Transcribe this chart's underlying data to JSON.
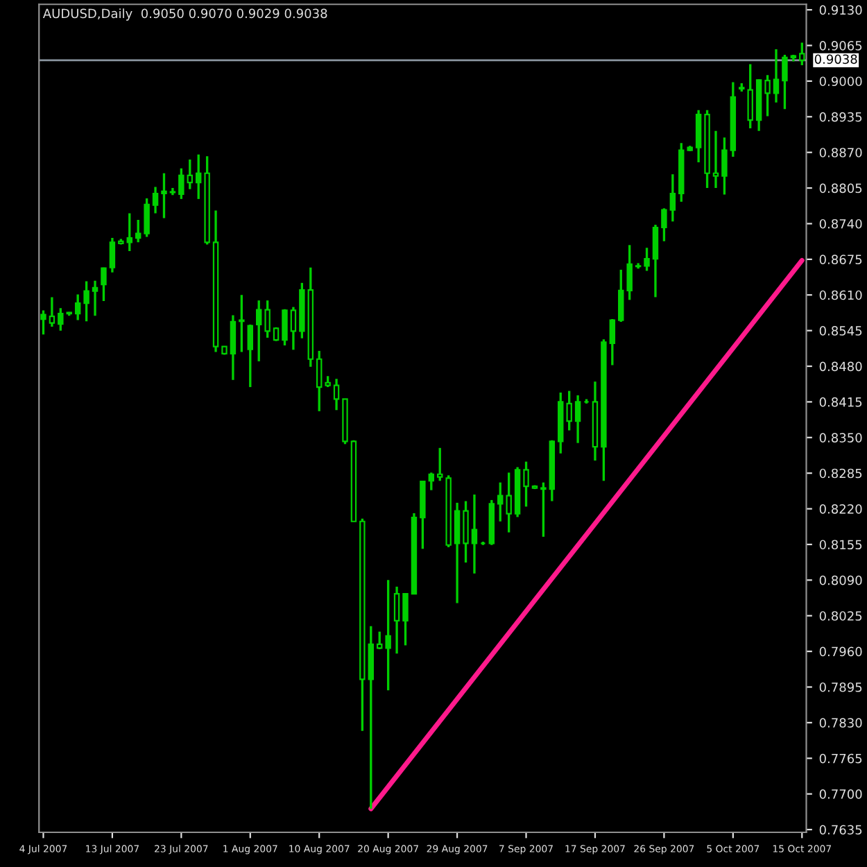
{
  "chart_data": {
    "type": "candlestick",
    "title": "AUDUSD,Daily  0.9050 0.9070 0.9029 0.9038",
    "categories": [
      "4 Jul 2007",
      null,
      null,
      null,
      null,
      null,
      null,
      null,
      "13 Jul 2007",
      null,
      null,
      null,
      null,
      null,
      null,
      null,
      "23 Jul 2007",
      null,
      null,
      null,
      null,
      null,
      null,
      null,
      "1 Aug 2007",
      null,
      null,
      null,
      null,
      null,
      null,
      null,
      "10 Aug 2007",
      null,
      null,
      null,
      null,
      null,
      null,
      null,
      "20 Aug 2007",
      null,
      null,
      null,
      null,
      null,
      null,
      null,
      "29 Aug 2007",
      null,
      null,
      null,
      null,
      null,
      null,
      null,
      "7 Sep 2007",
      null,
      null,
      null,
      null,
      null,
      null,
      null,
      "17 Sep 2007",
      null,
      null,
      null,
      null,
      null,
      null,
      null,
      "26 Sep 2007",
      null,
      null,
      null,
      null,
      null,
      null,
      null,
      "5 Oct 2007",
      null,
      null,
      null,
      null,
      null,
      null,
      null,
      "15 Oct 2007"
    ],
    "color": "#00d000",
    "ohlc": [
      [
        0.8566,
        0.8582,
        0.8538,
        0.8574
      ],
      [
        0.8571,
        0.8606,
        0.8552,
        0.8559
      ],
      [
        0.8557,
        0.8586,
        0.8545,
        0.8576
      ],
      [
        0.8578,
        0.8579,
        0.8572,
        0.8576
      ],
      [
        0.8576,
        0.8611,
        0.8564,
        0.8595
      ],
      [
        0.8595,
        0.8635,
        0.8562,
        0.8617
      ],
      [
        0.8617,
        0.8636,
        0.8572,
        0.8623
      ],
      [
        0.8629,
        0.866,
        0.8599,
        0.8659
      ],
      [
        0.866,
        0.8714,
        0.8651,
        0.8706
      ],
      [
        0.8708,
        0.8712,
        0.8702,
        0.8704
      ],
      [
        0.8706,
        0.8759,
        0.869,
        0.8714
      ],
      [
        0.8714,
        0.8747,
        0.8706,
        0.8722
      ],
      [
        0.8722,
        0.8786,
        0.8716,
        0.8775
      ],
      [
        0.8774,
        0.8807,
        0.8759,
        0.8795
      ],
      [
        0.8795,
        0.8832,
        0.875,
        0.8799
      ],
      [
        0.8797,
        0.8805,
        0.8792,
        0.8798
      ],
      [
        0.8794,
        0.8841,
        0.8785,
        0.8828
      ],
      [
        0.8828,
        0.8857,
        0.8803,
        0.8815
      ],
      [
        0.8815,
        0.8866,
        0.8785,
        0.8832
      ],
      [
        0.8832,
        0.8863,
        0.8702,
        0.8706
      ],
      [
        0.8706,
        0.8764,
        0.8506,
        0.8516
      ],
      [
        0.8516,
        0.8516,
        0.8501,
        0.8503
      ],
      [
        0.8503,
        0.8573,
        0.8455,
        0.8561
      ],
      [
        0.8562,
        0.861,
        0.8506,
        0.8564
      ],
      [
        0.8511,
        0.8556,
        0.8442,
        0.8554
      ],
      [
        0.8556,
        0.86,
        0.8489,
        0.8583
      ],
      [
        0.8583,
        0.86,
        0.8532,
        0.8544
      ],
      [
        0.8549,
        0.8551,
        0.8526,
        0.8528
      ],
      [
        0.8528,
        0.8584,
        0.8518,
        0.8582
      ],
      [
        0.8582,
        0.8588,
        0.851,
        0.8544
      ],
      [
        0.8544,
        0.8632,
        0.8531,
        0.8619
      ],
      [
        0.8619,
        0.866,
        0.8479,
        0.8493
      ],
      [
        0.8493,
        0.8508,
        0.8398,
        0.8442
      ],
      [
        0.845,
        0.8462,
        0.8442,
        0.8445
      ],
      [
        0.8445,
        0.8457,
        0.84,
        0.842
      ],
      [
        0.842,
        0.842,
        0.8338,
        0.8343
      ],
      [
        0.8343,
        0.8345,
        0.8197,
        0.8197
      ],
      [
        0.8197,
        0.8202,
        0.7815,
        0.7909
      ],
      [
        0.7909,
        0.8006,
        0.7673,
        0.7973
      ],
      [
        0.7973,
        0.7996,
        0.7964,
        0.7966
      ],
      [
        0.7966,
        0.809,
        0.7889,
        0.7988
      ],
      [
        0.8065,
        0.8078,
        0.7956,
        0.8016
      ],
      [
        0.8016,
        0.8065,
        0.7971,
        0.8065
      ],
      [
        0.8065,
        0.8212,
        0.8065,
        0.8204
      ],
      [
        0.8204,
        0.8271,
        0.8147,
        0.827
      ],
      [
        0.8271,
        0.8286,
        0.8254,
        0.8283
      ],
      [
        0.8283,
        0.8331,
        0.8271,
        0.8278
      ],
      [
        0.8276,
        0.8281,
        0.815,
        0.8154
      ],
      [
        0.8157,
        0.8231,
        0.8048,
        0.8216
      ],
      [
        0.8216,
        0.8234,
        0.8122,
        0.8157
      ],
      [
        0.8157,
        0.8246,
        0.8102,
        0.8182
      ],
      [
        0.8157,
        0.816,
        0.8154,
        0.8157
      ],
      [
        0.8157,
        0.8236,
        0.8154,
        0.8229
      ],
      [
        0.8229,
        0.8268,
        0.8197,
        0.8244
      ],
      [
        0.8244,
        0.8286,
        0.8177,
        0.8211
      ],
      [
        0.8211,
        0.8296,
        0.8205,
        0.8291
      ],
      [
        0.8291,
        0.8306,
        0.8224,
        0.8261
      ],
      [
        0.8261,
        0.8263,
        0.8256,
        0.8258
      ],
      [
        0.8258,
        0.8268,
        0.8169,
        0.8256
      ],
      [
        0.8256,
        0.8345,
        0.8234,
        0.8343
      ],
      [
        0.8343,
        0.8432,
        0.8321,
        0.8415
      ],
      [
        0.8412,
        0.8435,
        0.8363,
        0.838
      ],
      [
        0.838,
        0.8427,
        0.834,
        0.8415
      ],
      [
        0.8415,
        0.842,
        0.8412,
        0.8415
      ],
      [
        0.8415,
        0.8452,
        0.8308,
        0.8333
      ],
      [
        0.8333,
        0.8529,
        0.8271,
        0.8524
      ],
      [
        0.8522,
        0.8566,
        0.8482,
        0.8564
      ],
      [
        0.8564,
        0.8656,
        0.8561,
        0.8618
      ],
      [
        0.8618,
        0.8701,
        0.8601,
        0.8666
      ],
      [
        0.8663,
        0.8668,
        0.8658,
        0.8662
      ],
      [
        0.8663,
        0.8696,
        0.8654,
        0.8676
      ],
      [
        0.8676,
        0.8738,
        0.8606,
        0.8733
      ],
      [
        0.8733,
        0.8768,
        0.8708,
        0.8765
      ],
      [
        0.8765,
        0.883,
        0.8744,
        0.8795
      ],
      [
        0.8795,
        0.8887,
        0.878,
        0.8874
      ],
      [
        0.8874,
        0.8882,
        0.8872,
        0.8879
      ],
      [
        0.8879,
        0.8947,
        0.8852,
        0.8939
      ],
      [
        0.8939,
        0.8947,
        0.8805,
        0.8832
      ],
      [
        0.8832,
        0.8909,
        0.8805,
        0.8827
      ],
      [
        0.8827,
        0.8897,
        0.8793,
        0.8874
      ],
      [
        0.8874,
        0.8998,
        0.8862,
        0.8971
      ],
      [
        0.8988,
        0.8996,
        0.8981,
        0.8986
      ],
      [
        0.8984,
        0.9031,
        0.8914,
        0.8929
      ],
      [
        0.8929,
        0.9003,
        0.8909,
        0.9002
      ],
      [
        0.9001,
        0.9011,
        0.8936,
        0.8978
      ],
      [
        0.8978,
        0.9058,
        0.8961,
        0.9003
      ],
      [
        0.9001,
        0.9048,
        0.8949,
        0.9043
      ],
      [
        0.9043,
        0.9048,
        0.9036,
        0.9046
      ],
      [
        0.905,
        0.907,
        0.9029,
        0.9038
      ]
    ],
    "series": [
      {
        "type": "line",
        "color": "#ff1a8c",
        "values": [
          null,
          null,
          null,
          null,
          null,
          null,
          null,
          null,
          null,
          null,
          null,
          null,
          null,
          null,
          null,
          null,
          null,
          null,
          null,
          null,
          null,
          null,
          null,
          null,
          null,
          null,
          null,
          null,
          null,
          null,
          null,
          null,
          null,
          null,
          null,
          null,
          null,
          null,
          0.7673,
          null,
          null,
          null,
          null,
          null,
          null,
          null,
          null,
          null,
          null,
          null,
          null,
          null,
          null,
          null,
          null,
          null,
          null,
          null,
          null,
          null,
          null,
          null,
          null,
          null,
          null,
          null,
          null,
          null,
          null,
          null,
          null,
          null,
          null,
          null,
          null,
          null,
          null,
          null,
          null,
          null,
          null,
          null,
          null,
          null,
          null,
          null,
          null,
          null,
          0.8673
        ]
      }
    ],
    "ref_lines": [
      {
        "axis": "y",
        "value": 0.9038,
        "label": "0.9038",
        "color": "#8a95a0"
      }
    ],
    "ylim": [
      0.763,
      0.914
    ],
    "yticks": [
      {
        "value": 0.7635,
        "label": "0.7635"
      },
      {
        "value": 0.77,
        "label": "0.7700"
      },
      {
        "value": 0.7765,
        "label": "0.7765"
      },
      {
        "value": 0.783,
        "label": "0.7830"
      },
      {
        "value": 0.7895,
        "label": "0.7895"
      },
      {
        "value": 0.796,
        "label": "0.7960"
      },
      {
        "value": 0.8025,
        "label": "0.8025"
      },
      {
        "value": 0.809,
        "label": "0.8090"
      },
      {
        "value": 0.8155,
        "label": "0.8155"
      },
      {
        "value": 0.822,
        "label": "0.8220"
      },
      {
        "value": 0.8285,
        "label": "0.8285"
      },
      {
        "value": 0.835,
        "label": "0.8350"
      },
      {
        "value": 0.8415,
        "label": "0.8415"
      },
      {
        "value": 0.848,
        "label": "0.8480"
      },
      {
        "value": 0.8545,
        "label": "0.8545"
      },
      {
        "value": 0.861,
        "label": "0.8610"
      },
      {
        "value": 0.8675,
        "label": "0.8675"
      },
      {
        "value": 0.874,
        "label": "0.8740"
      },
      {
        "value": 0.8805,
        "label": "0.8805"
      },
      {
        "value": 0.887,
        "label": "0.8870"
      },
      {
        "value": 0.8935,
        "label": "0.8935"
      },
      {
        "value": 0.9,
        "label": "0.9000"
      },
      {
        "value": 0.9065,
        "label": "0.9065"
      },
      {
        "value": 0.913,
        "label": "0.9130"
      }
    ],
    "grid": false
  }
}
